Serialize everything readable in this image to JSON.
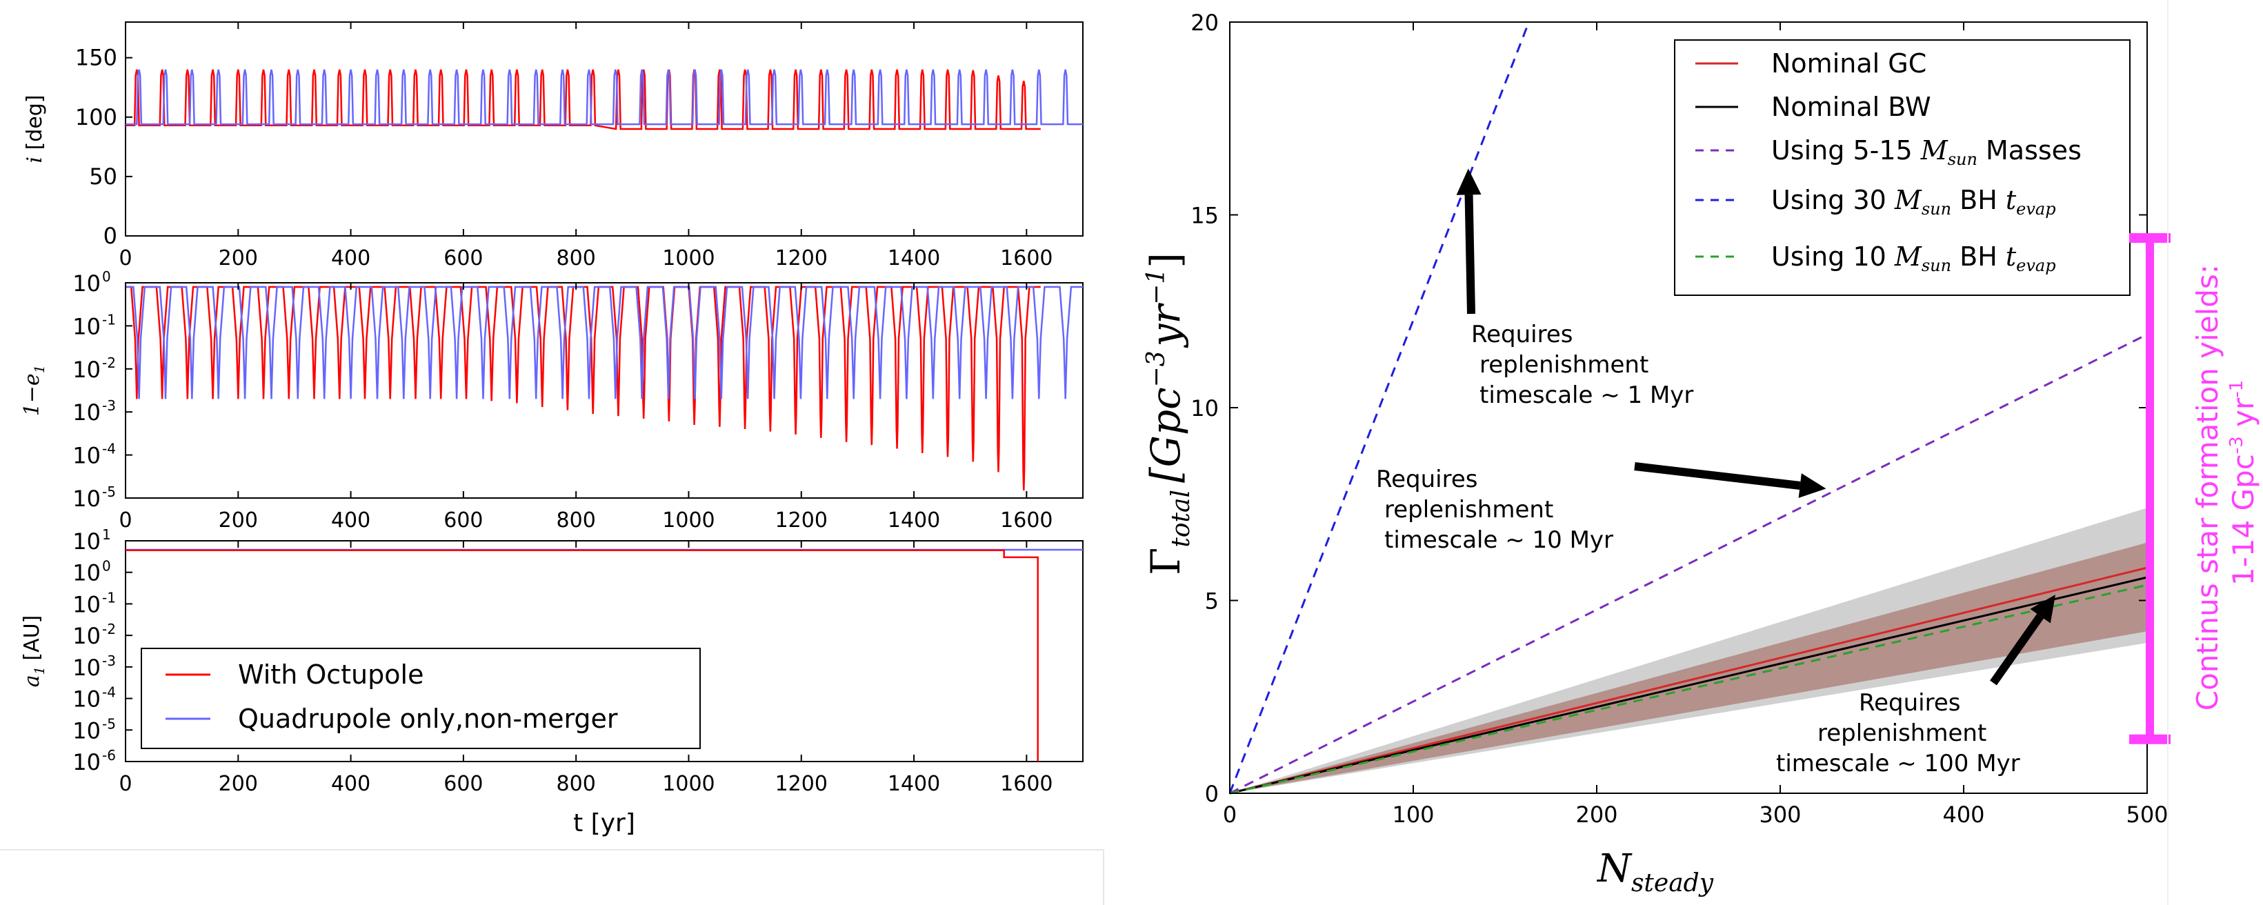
{
  "colors": {
    "octupole": "#ff0000",
    "quadrupole": "#6666ff",
    "nominal_gc": "#d62728",
    "nominal_bw": "#000000",
    "masses_5_15": "#7b2cbf",
    "bh30": "#1f1fdf",
    "bh10": "#2ca02c",
    "band_red": "#b08680",
    "band_grey": "#bcbcbc",
    "magenta": "#ff40ff"
  },
  "chart_data": [
    {
      "type": "line",
      "panel": "left-top",
      "ylabel": "i [deg]",
      "xlim": [
        0,
        1700
      ],
      "ylim": [
        0,
        180
      ],
      "xticks": [
        "0",
        "200",
        "400",
        "600",
        "800",
        "1000",
        "1200",
        "1400",
        "1600"
      ],
      "yticks": [
        "0",
        "50",
        "100",
        "150"
      ],
      "series": [
        {
          "name": "With Octupole",
          "base": 93,
          "peak": 140,
          "peak_times": [
            20,
            65,
            110,
            155,
            200,
            245,
            290,
            335,
            380,
            425,
            470,
            515,
            560,
            605,
            650,
            695,
            740,
            785,
            830,
            875,
            920,
            965,
            1010,
            1055,
            1100,
            1145,
            1190,
            1235,
            1280,
            1325,
            1370,
            1415,
            1460,
            1505,
            1550,
            1595
          ],
          "tail_base": 90,
          "end_x": 1625
        },
        {
          "name": "Quadrupole only,non-merger",
          "base": 94,
          "peak": 140,
          "peak_times": [
            24,
            71,
            118,
            165,
            212,
            259,
            306,
            353,
            400,
            447,
            494,
            541,
            588,
            635,
            682,
            729,
            776,
            823,
            870,
            917,
            964,
            1011,
            1058,
            1105,
            1152,
            1199,
            1246,
            1293,
            1340,
            1387,
            1434,
            1481,
            1528,
            1575,
            1622,
            1669
          ],
          "end_x": 1700
        }
      ]
    },
    {
      "type": "line",
      "panel": "left-middle",
      "ylabel": "1−e",
      "ylabel_sub": "1",
      "yscale": "log",
      "xlim": [
        0,
        1700
      ],
      "ylim": [
        1e-05,
        1
      ],
      "xticks": [
        "0",
        "200",
        "400",
        "600",
        "800",
        "1000",
        "1200",
        "1400",
        "1600"
      ],
      "yticks": [
        {
          "base": "10",
          "exp": "0"
        },
        {
          "base": "10",
          "exp": "-1"
        },
        {
          "base": "10",
          "exp": "-2"
        },
        {
          "base": "10",
          "exp": "-3"
        },
        {
          "base": "10",
          "exp": "-4"
        },
        {
          "base": "10",
          "exp": "-5"
        }
      ],
      "series": [
        {
          "name": "With Octupole",
          "high": 0.8,
          "peak_times": [
            20,
            65,
            110,
            155,
            200,
            245,
            290,
            335,
            380,
            425,
            470,
            515,
            560,
            605,
            650,
            695,
            740,
            785,
            830,
            875,
            920,
            965,
            1010,
            1055,
            1100,
            1145,
            1190,
            1235,
            1280,
            1325,
            1370,
            1415,
            1460,
            1505,
            1550,
            1595
          ],
          "minima": [
            0.002,
            0.002,
            0.002,
            0.002,
            0.002,
            0.002,
            0.002,
            0.002,
            0.002,
            0.002,
            0.002,
            0.002,
            0.002,
            0.002,
            0.0018,
            0.0016,
            0.0013,
            0.0011,
            0.0009,
            0.0008,
            0.0007,
            0.0006,
            0.0005,
            0.00045,
            0.0004,
            0.00035,
            0.0003,
            0.00025,
            0.0002,
            0.00017,
            0.00014,
            0.00011,
            9e-05,
            7e-05,
            4e-05,
            1.5e-05
          ],
          "end_x": 1625
        },
        {
          "name": "Quadrupole only,non-merger",
          "high": 0.8,
          "minimum": 0.002,
          "peak_times": [
            24,
            71,
            118,
            165,
            212,
            259,
            306,
            353,
            400,
            447,
            494,
            541,
            588,
            635,
            682,
            729,
            776,
            823,
            870,
            917,
            964,
            1011,
            1058,
            1105,
            1152,
            1199,
            1246,
            1293,
            1340,
            1387,
            1434,
            1481,
            1528,
            1575,
            1622,
            1669
          ],
          "end_x": 1700
        }
      ]
    },
    {
      "type": "line",
      "panel": "left-bottom",
      "ylabel": "a",
      "ylabel_sub": "1",
      "ylabel_unit": "[AU]",
      "xlabel": "t [yr]",
      "yscale": "log",
      "xlim": [
        0,
        1700
      ],
      "ylim": [
        1e-06,
        10
      ],
      "xticks": [
        "0",
        "200",
        "400",
        "600",
        "800",
        "1000",
        "1200",
        "1400",
        "1600"
      ],
      "yticks": [
        {
          "base": "10",
          "exp": "1"
        },
        {
          "base": "10",
          "exp": "0"
        },
        {
          "base": "10",
          "exp": "-1"
        },
        {
          "base": "10",
          "exp": "-2"
        },
        {
          "base": "10",
          "exp": "-3"
        },
        {
          "base": "10",
          "exp": "-4"
        },
        {
          "base": "10",
          "exp": "-5"
        },
        {
          "base": "10",
          "exp": "-6"
        }
      ],
      "legend": {
        "position": "lower-left"
      },
      "series": [
        {
          "name": "With Octupole",
          "x": [
            0,
            1560,
            1560,
            1620,
            1620
          ],
          "y": [
            5,
            5,
            3,
            3,
            1e-06
          ]
        },
        {
          "name": "Quadrupole only,non-merger",
          "x": [
            0,
            1700
          ],
          "y": [
            5.2,
            5.2
          ]
        }
      ]
    },
    {
      "type": "line",
      "panel": "right",
      "xlabel": "N",
      "xlabel_sub": "steady",
      "ylabel_text": "Γ",
      "ylabel_sub": "total",
      "ylabel_unit": "[Gpc",
      "ylabel_exp": "−3",
      "ylabel_unit2": "yr",
      "ylabel_exp2": "−1",
      "ylabel_close": "]",
      "xlim": [
        0,
        500
      ],
      "ylim": [
        0,
        20
      ],
      "xticks": [
        "0",
        "100",
        "200",
        "300",
        "400",
        "500"
      ],
      "yticks": [
        "0",
        "5",
        "10",
        "15",
        "20"
      ],
      "legend": {
        "position": "top-right"
      },
      "series": [
        {
          "name": "Nominal GC",
          "style": "solid",
          "x": [
            0,
            500
          ],
          "y": [
            0,
            5.85
          ]
        },
        {
          "name": "Nominal BW",
          "style": "solid",
          "x": [
            0,
            500
          ],
          "y": [
            0,
            5.6
          ]
        },
        {
          "name_prefix": "Using 5-15 ",
          "name_math": "M",
          "name_sub": "sun",
          "name_suffix": " Masses",
          "style": "dashed",
          "x": [
            0,
            500
          ],
          "y": [
            0,
            11.9
          ]
        },
        {
          "name_prefix": "Using 30 ",
          "name_math": "M",
          "name_sub": "sun",
          "name_suffix": " BH ",
          "name_math2": "t",
          "name_sub2": "evap",
          "style": "dashed",
          "x": [
            0,
            163
          ],
          "y": [
            0,
            20
          ]
        },
        {
          "name_prefix": "Using 10 ",
          "name_math": "M",
          "name_sub": "sun",
          "name_suffix": " BH ",
          "name_math2": "t",
          "name_sub2": "evap",
          "style": "dashed",
          "x": [
            0,
            500
          ],
          "y": [
            0,
            5.4
          ]
        }
      ],
      "bands": [
        {
          "x": [
            0,
            500
          ],
          "y_low": [
            0,
            3.9
          ],
          "y_high": [
            0,
            7.4
          ]
        },
        {
          "x": [
            0,
            500
          ],
          "y_low": [
            0,
            4.2
          ],
          "y_high": [
            0,
            6.5
          ]
        }
      ],
      "annotations": [
        {
          "lines": [
            "Requires",
            "replenishment",
            "timescale ~ 1 Myr"
          ],
          "arrow_to": [
            130,
            16.2
          ]
        },
        {
          "lines": [
            "Requires",
            "replenishment",
            "timescale ~ 10 Myr"
          ],
          "arrow_to": [
            325,
            7.9
          ]
        },
        {
          "lines": [
            "Requires",
            "replenishment",
            "timescale ~ 100 Myr"
          ],
          "arrow_to": [
            450,
            5.15
          ]
        }
      ],
      "range_bar": {
        "y": [
          1.4,
          14.4
        ],
        "label_line1": "Continus star formation yields:",
        "label_line2_prefix": "1-14 Gpc",
        "label_exp1": "-3",
        "label_mid": " yr",
        "label_exp2": "-1"
      }
    }
  ]
}
